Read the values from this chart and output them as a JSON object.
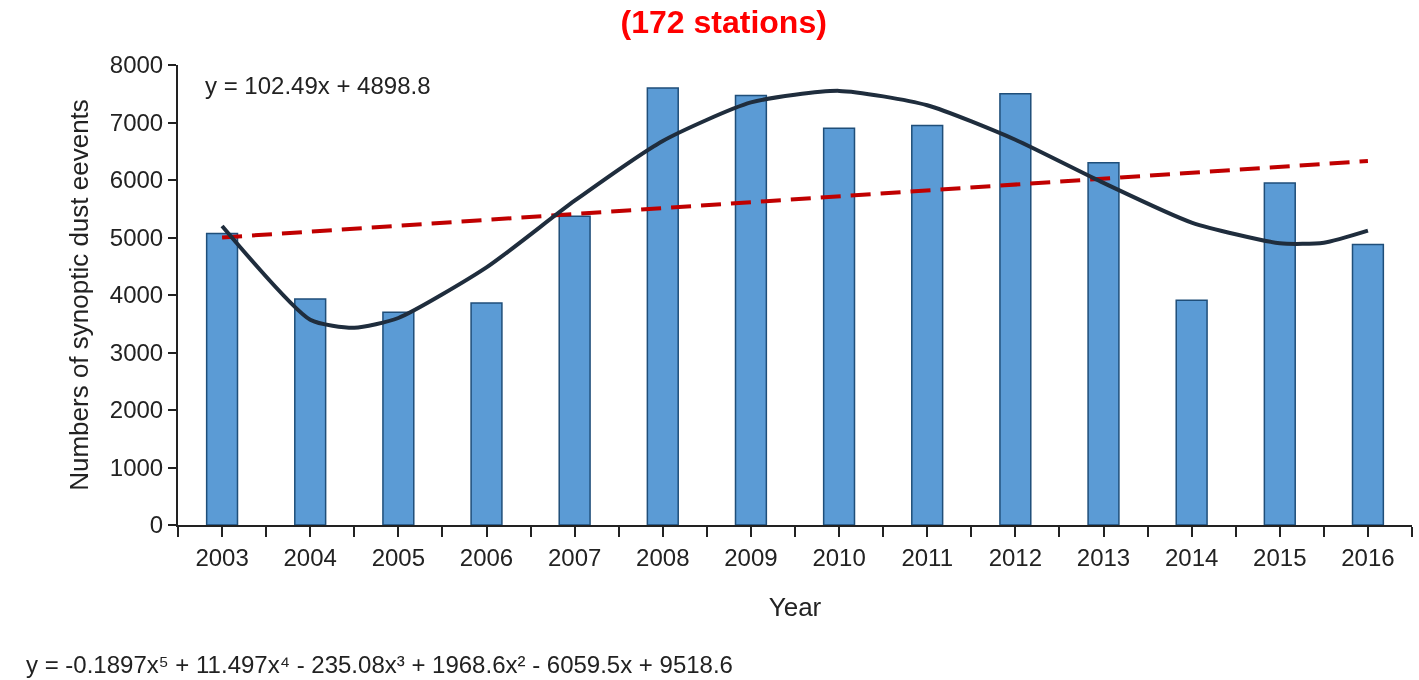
{
  "chart_data": {
    "type": "bar",
    "title": "(172 stations)",
    "xlabel": "Year",
    "ylabel": "Numbers of synoptic dust eevents",
    "x": [
      2003,
      2004,
      2005,
      2006,
      2007,
      2008,
      2009,
      2010,
      2011,
      2012,
      2013,
      2014,
      2015,
      2016
    ],
    "series": [
      {
        "color": "#5b9bd5",
        "values": [
          5070,
          3930,
          3700,
          3860,
          5370,
          7600,
          7470,
          6900,
          6950,
          7500,
          6300,
          3910,
          5950,
          4880
        ]
      },
      {
        "type": "line",
        "color": "#c00000",
        "line_style": "dashed",
        "x": [
          2003,
          2016
        ],
        "values": [
          5000,
          6330
        ]
      },
      {
        "type": "line",
        "color": "#1f2d3d",
        "line_style": "solid",
        "x": [
          2003,
          2004,
          2004.5,
          2005,
          2006,
          2007,
          2008,
          2009,
          2010,
          2011,
          2012,
          2013,
          2014,
          2015,
          2015.5,
          2016
        ],
        "values": [
          5200,
          3570,
          3430,
          3600,
          4480,
          5640,
          6680,
          7350,
          7550,
          7300,
          6700,
          5950,
          5260,
          4900,
          4910,
          5120
        ]
      }
    ],
    "xlim": [
      2002.5,
      2016.5
    ],
    "xticks": [
      {
        "value": 2002.5,
        "label": null
      },
      2003,
      {
        "value": 2003.5,
        "label": null
      },
      2004,
      {
        "value": 2004.5,
        "label": null
      },
      2005,
      {
        "value": 2005.5,
        "label": null
      },
      2006,
      {
        "value": 2006.5,
        "label": null
      },
      2007,
      {
        "value": 2007.5,
        "label": null
      },
      2008,
      {
        "value": 2008.5,
        "label": null
      },
      2009,
      {
        "value": 2009.5,
        "label": null
      },
      2010,
      {
        "value": 2010.5,
        "label": null
      },
      2011,
      {
        "value": 2011.5,
        "label": null
      },
      2012,
      {
        "value": 2012.5,
        "label": null
      },
      2013,
      {
        "value": 2013.5,
        "label": null
      },
      2014,
      {
        "value": 2014.5,
        "label": null
      },
      2015,
      {
        "value": 2015.5,
        "label": null
      },
      2016,
      {
        "value": 2016.5,
        "label": null
      }
    ],
    "ylim": [
      0,
      8000
    ],
    "yticks": [
      0,
      1000,
      2000,
      3000,
      4000,
      5000,
      6000,
      7000,
      8000
    ],
    "grid": false,
    "marker": "none",
    "annotations": [
      "y = 102.49x + 4898.8",
      "y = -0.1897x⁵ + 11.497x⁴ - 235.08x³ + 1968.6x² - 6059.5x + 9518.6"
    ]
  }
}
